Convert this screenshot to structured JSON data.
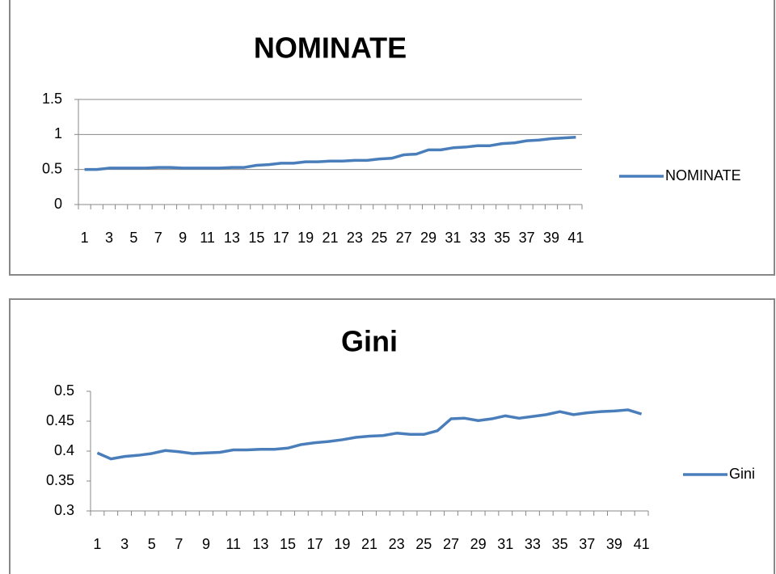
{
  "chart_data": [
    {
      "type": "line",
      "title": "NOMINATE",
      "categories": [
        "1",
        null,
        "3",
        null,
        "5",
        null,
        "7",
        null,
        "9",
        null,
        "11",
        null,
        "13",
        null,
        "15",
        null,
        "17",
        null,
        "19",
        null,
        "21",
        null,
        "23",
        null,
        "25",
        null,
        "27",
        null,
        "29",
        null,
        "31",
        null,
        "33",
        null,
        "35",
        null,
        "37",
        null,
        "39",
        null,
        "41"
      ],
      "series": [
        {
          "name": "NOMINATE",
          "color": "#4a7ebb",
          "values": [
            0.5,
            0.5,
            0.52,
            0.52,
            0.52,
            0.52,
            0.53,
            0.53,
            0.52,
            0.52,
            0.52,
            0.52,
            0.53,
            0.53,
            0.56,
            0.57,
            0.59,
            0.59,
            0.61,
            0.61,
            0.62,
            0.62,
            0.63,
            0.63,
            0.65,
            0.66,
            0.71,
            0.72,
            0.78,
            0.78,
            0.81,
            0.82,
            0.84,
            0.84,
            0.87,
            0.88,
            0.91,
            0.92,
            0.94,
            0.95,
            0.96
          ]
        }
      ],
      "ylim": [
        0,
        1.5
      ],
      "yticks": [
        0,
        0.5,
        1,
        1.5
      ],
      "grid": true,
      "legend": "right"
    },
    {
      "type": "line",
      "title": "Gini",
      "categories": [
        "1",
        null,
        "3",
        null,
        "5",
        null,
        "7",
        null,
        "9",
        null,
        "11",
        null,
        "13",
        null,
        "15",
        null,
        "17",
        null,
        "19",
        null,
        "21",
        null,
        "23",
        null,
        "25",
        null,
        "27",
        null,
        "29",
        null,
        "31",
        null,
        "33",
        null,
        "35",
        null,
        "37",
        null,
        "39",
        null,
        "41"
      ],
      "series": [
        {
          "name": "Gini",
          "color": "#4a7ebb",
          "values": [
            0.397,
            0.387,
            0.391,
            0.393,
            0.396,
            0.401,
            0.399,
            0.396,
            0.397,
            0.398,
            0.402,
            0.402,
            0.403,
            0.403,
            0.405,
            0.411,
            0.414,
            0.416,
            0.419,
            0.423,
            0.425,
            0.426,
            0.43,
            0.428,
            0.428,
            0.434,
            0.454,
            0.455,
            0.451,
            0.454,
            0.459,
            0.455,
            0.458,
            0.461,
            0.466,
            0.461,
            0.464,
            0.466,
            0.467,
            0.469,
            0.462
          ]
        }
      ],
      "ylim": [
        0.3,
        0.5
      ],
      "yticks": [
        0.3,
        0.35,
        0.4,
        0.45,
        0.5
      ],
      "grid": false,
      "legend": "right"
    }
  ]
}
